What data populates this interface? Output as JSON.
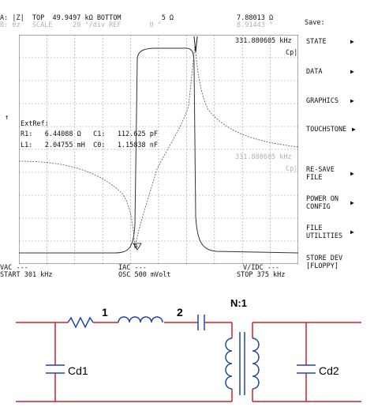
{
  "analyzer": {
    "header_line1": "A: |Z|  TOP  49.9497 kΩ BOTTOM          5 Ω",
    "header_right_value": "7.88013 Ω",
    "save_label": "Save:",
    "header_line2_faint": "B: θz   SCALE     20 °/div REF       0 °",
    "header_right_faint": "8.91443 °",
    "marker_freq": "331.880605 kHz",
    "marker_mode": "Cp|",
    "marker_freq_faint": "331.880605 kHz",
    "marker_mode_faint": "Cp|",
    "ext_ref": "ExtRef:",
    "r1_line": "R1:   6.44088 Ω   C1:   112.625 pF",
    "l1_line": "L1:   2.04755 mH  C0:   1.15838 nF",
    "bottom_left_top": "VAC ---",
    "bottom_mid_top": "IAC ---",
    "bottom_right_top": "V/IDC ---",
    "start": "START 301 kHz",
    "osc": "OSC 500 mVolt",
    "stop": "STOP 375 kHz",
    "grid": true,
    "colors": {
      "trace": "#333333",
      "grid": "#9a9a9a",
      "faint_text": "#b0b0b0"
    }
  },
  "menu": [
    {
      "label": "STATE",
      "arrow": "▶"
    },
    {
      "label": "DATA",
      "arrow": "▶"
    },
    {
      "label": "GRAPHICS",
      "arrow": "▶"
    },
    {
      "label": "TOUCHSTONE",
      "arrow": "▶"
    },
    {
      "label": "RE-SAVE\nFILE",
      "arrow": "▶"
    },
    {
      "label": "POWER ON\nCONFIG",
      "arrow": "▶"
    },
    {
      "label": "FILE\nUTILITIES",
      "arrow": "▶"
    },
    {
      "label": "STORE DEV\n[FLOPPY]",
      "arrow": ""
    }
  ],
  "circuit": {
    "node_1": "1",
    "node_2": "2",
    "turns_ratio": "N:1",
    "cap_left": "Cd1",
    "cap_right": "Cd2",
    "colors": {
      "wire": "#cc2222",
      "component": "#2244aa"
    }
  }
}
